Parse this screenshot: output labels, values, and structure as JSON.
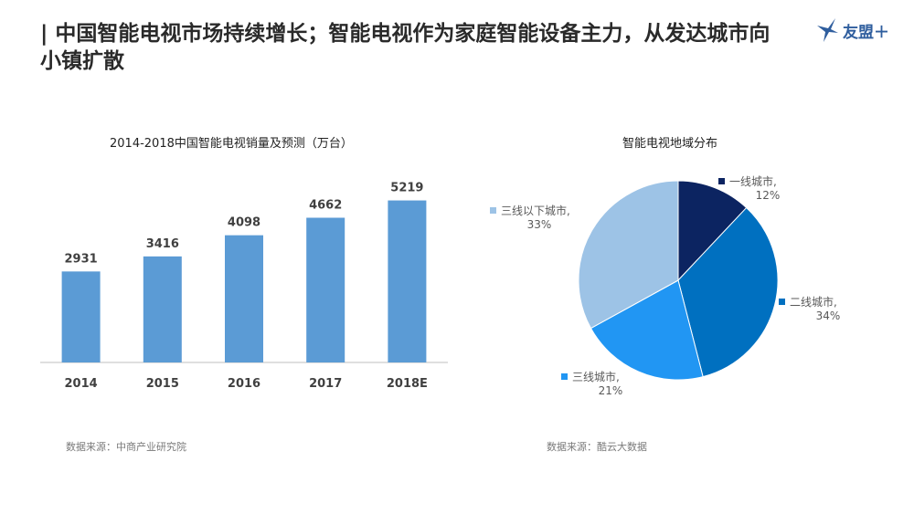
{
  "header": {
    "title": "| 中国智能电视市场持续增长；智能电视作为家庭智能设备主力，从发达城市向小镇扩散",
    "logo_text": "友盟＋"
  },
  "colors": {
    "bar": "#5b9bd5",
    "axis": "#bfbfbf",
    "pie_tier1": "#0c2461",
    "pie_tier2": "#0070c0",
    "pie_tier3": "#2196f3",
    "pie_tier4": "#9dc3e6",
    "logo": "#2f5e9e"
  },
  "chart_data": [
    {
      "type": "bar",
      "title": "2014-2018中国智能电视销量及预测（万台）",
      "categories": [
        "2014",
        "2015",
        "2016",
        "2017",
        "2018E"
      ],
      "values": [
        2931,
        3416,
        4098,
        4662,
        5219
      ],
      "xlabel": "",
      "ylabel": "",
      "ylim": [
        0,
        6000
      ],
      "grid": false,
      "source": "数据来源：中商产业研究院"
    },
    {
      "type": "pie",
      "title": "智能电视地域分布",
      "labels": [
        "一线城市,",
        "二线城市,",
        "三线城市,",
        "三线以下城市,"
      ],
      "values": [
        12,
        34,
        21,
        33
      ],
      "value_labels": [
        "12%",
        "34%",
        "21%",
        "33%"
      ],
      "source": "数据来源：酷云大数据"
    }
  ]
}
